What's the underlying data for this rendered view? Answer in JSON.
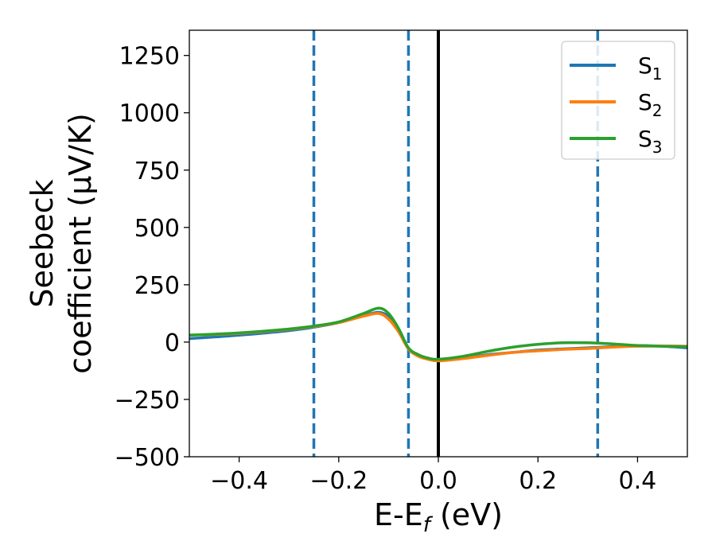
{
  "chart_data": {
    "type": "line",
    "xlabel": "E-E",
    "xlabel_sub": "f",
    "xlabel_unit": " (eV)",
    "ylabel_line1": "Seebeck",
    "ylabel_line2": "coefficient  (μV/K)",
    "xlim": [
      -0.5,
      0.5
    ],
    "ylim": [
      -500,
      1360
    ],
    "xticks": [
      -0.4,
      -0.2,
      0.0,
      0.2,
      0.4
    ],
    "xtick_labels": [
      "−0.4",
      "−0.2",
      "0.0",
      "0.2",
      "0.4"
    ],
    "yticks": [
      -500,
      -250,
      0,
      250,
      500,
      750,
      1000,
      1250
    ],
    "ytick_labels": [
      "−500",
      "−250",
      "0",
      "250",
      "500",
      "750",
      "1000",
      "1250"
    ],
    "grid": false,
    "legend_position": "top-right",
    "vlines": [
      {
        "x": -0.25,
        "style": "dashed",
        "color": "#1f77b4"
      },
      {
        "x": -0.06,
        "style": "dashed",
        "color": "#1f77b4"
      },
      {
        "x": 0.32,
        "style": "dashed",
        "color": "#1f77b4"
      },
      {
        "x": 0.0,
        "style": "solid",
        "color": "#000000"
      }
    ],
    "x": [
      -0.5,
      -0.4,
      -0.3,
      -0.25,
      -0.2,
      -0.15,
      -0.12,
      -0.1,
      -0.08,
      -0.06,
      -0.04,
      -0.02,
      0.0,
      0.05,
      0.1,
      0.15,
      0.2,
      0.25,
      0.3,
      0.35,
      0.4,
      0.45,
      0.5
    ],
    "series": [
      {
        "name": "S",
        "sub": "1",
        "color": "#1f77b4",
        "values": [
          15,
          30,
          50,
          65,
          85,
          115,
          130,
          110,
          50,
          -30,
          -60,
          -75,
          -80,
          -70,
          -55,
          -45,
          -35,
          -30,
          -25,
          -20,
          -15,
          -18,
          -25
        ]
      },
      {
        "name": "S",
        "sub": "2",
        "color": "#ff7f0e",
        "values": [
          30,
          38,
          55,
          68,
          85,
          113,
          125,
          100,
          45,
          -30,
          -62,
          -75,
          -82,
          -72,
          -58,
          -45,
          -38,
          -32,
          -28,
          -22,
          -18,
          -17,
          -18
        ]
      },
      {
        "name": "S",
        "sub": "3",
        "color": "#2ca02c",
        "values": [
          30,
          40,
          57,
          70,
          88,
          125,
          148,
          125,
          60,
          -25,
          -55,
          -70,
          -75,
          -62,
          -40,
          -22,
          -10,
          -3,
          -3,
          -8,
          -15,
          -18,
          -20
        ]
      }
    ]
  }
}
